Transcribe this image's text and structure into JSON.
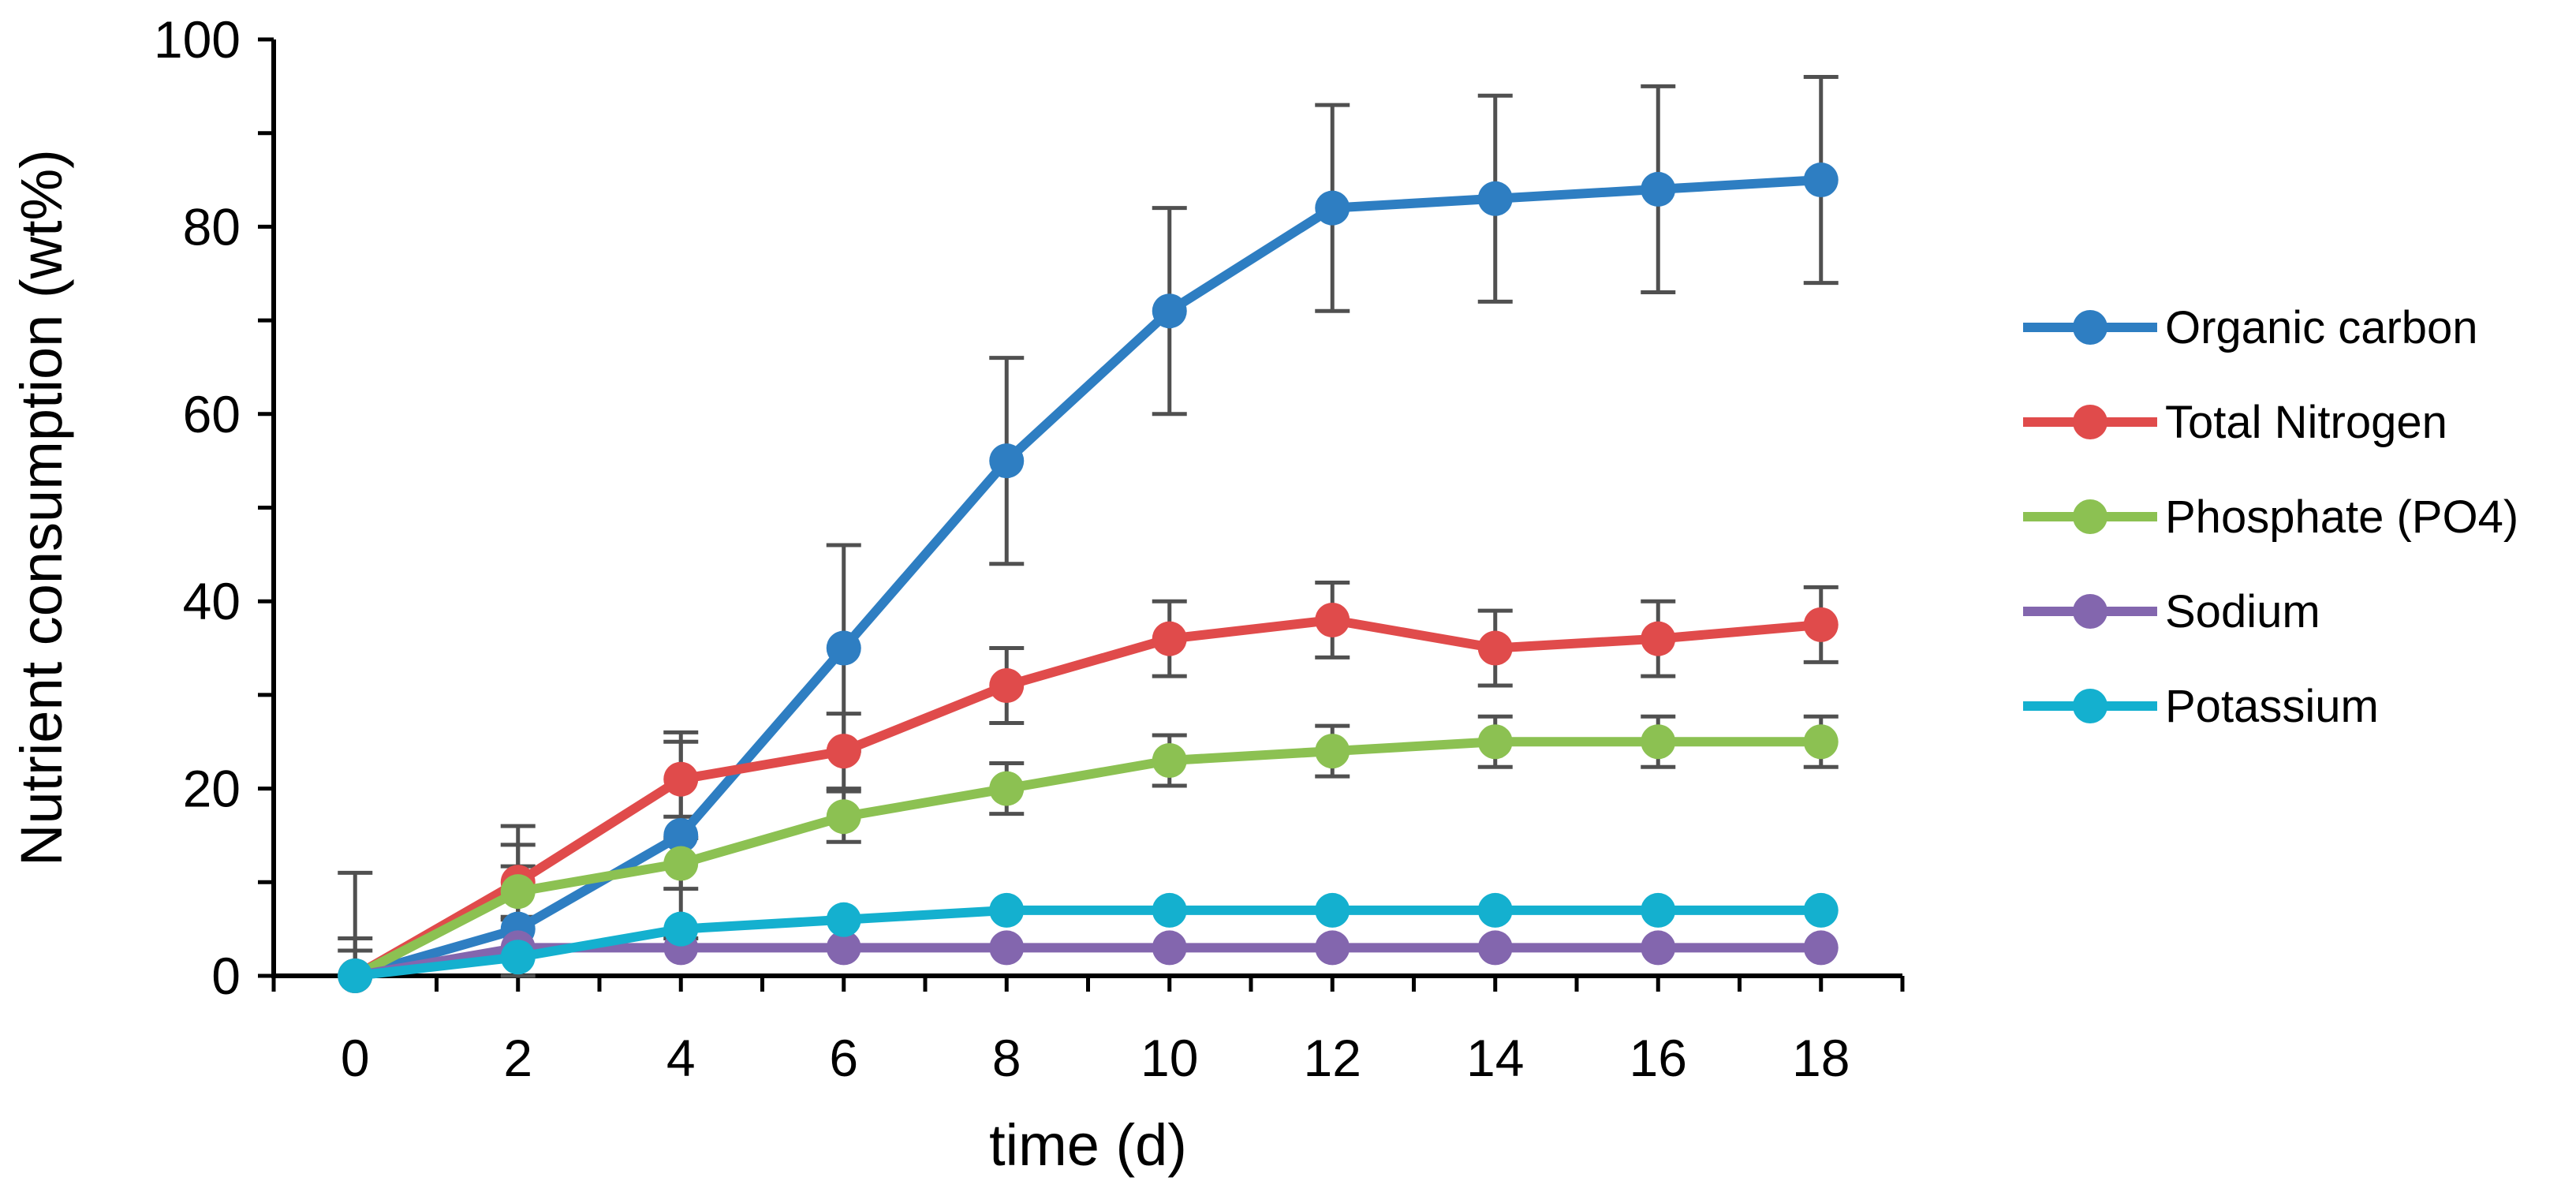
{
  "chart_data": {
    "type": "line",
    "title": "",
    "xlabel": "time (d)",
    "ylabel": "Nutrient consumption (wt%)",
    "x": [
      0,
      2,
      4,
      6,
      8,
      10,
      12,
      14,
      16,
      18
    ],
    "xlim": [
      -1,
      19
    ],
    "ylim": [
      0,
      100
    ],
    "xticks": [
      0,
      2,
      4,
      6,
      8,
      10,
      12,
      14,
      16,
      18
    ],
    "yticks": [
      0,
      20,
      40,
      60,
      80,
      100
    ],
    "grid": false,
    "legend_position": "right",
    "series": [
      {
        "name": "Organic carbon",
        "color": "#2E7EC2",
        "values": [
          0,
          5,
          15,
          35,
          55,
          71,
          82,
          83,
          84,
          85
        ],
        "errors": [
          11,
          11,
          11,
          11,
          11,
          11,
          11,
          11,
          11,
          11
        ]
      },
      {
        "name": "Total Nitrogen",
        "color": "#E04B4B",
        "values": [
          0,
          10,
          21,
          24,
          31,
          36,
          38,
          35,
          36,
          37.5
        ],
        "errors": [
          4,
          4,
          4,
          4,
          4,
          4,
          4,
          4,
          4,
          4
        ]
      },
      {
        "name": "Phosphate (PO4)",
        "color": "#8CC152",
        "values": [
          0,
          9,
          12,
          17,
          20,
          23,
          24,
          25,
          25,
          25
        ],
        "errors": [
          2.7,
          2.7,
          2.7,
          2.7,
          2.7,
          2.7,
          2.7,
          2.7,
          2.7,
          2.7
        ]
      },
      {
        "name": "Sodium",
        "color": "#8366AE",
        "values": [
          0,
          3,
          3,
          3,
          3,
          3,
          3,
          3,
          3,
          3
        ],
        "errors": [
          0,
          0,
          0,
          0,
          0,
          0,
          0,
          0,
          0,
          0
        ]
      },
      {
        "name": "Potassium",
        "color": "#14B0CF",
        "values": [
          0,
          2,
          5,
          6,
          7,
          7,
          7,
          7,
          7,
          7
        ],
        "errors": [
          0,
          0,
          0,
          0,
          0,
          0,
          0,
          0,
          0,
          0
        ]
      }
    ]
  }
}
